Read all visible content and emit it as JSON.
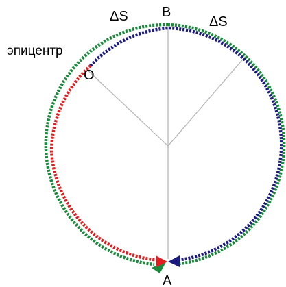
{
  "labels": {
    "delta_left": "ΔS",
    "delta_right": "ΔS",
    "point_b": "B",
    "point_o": "O",
    "point_a": "A",
    "epicenter": "эпицентр"
  },
  "colors": {
    "green_wave": "#1a8a3c",
    "red_wave": "#e02020",
    "blue_wave": "#1a1a80",
    "radius_lines": "#b0b0b0",
    "text": "#000000"
  }
}
